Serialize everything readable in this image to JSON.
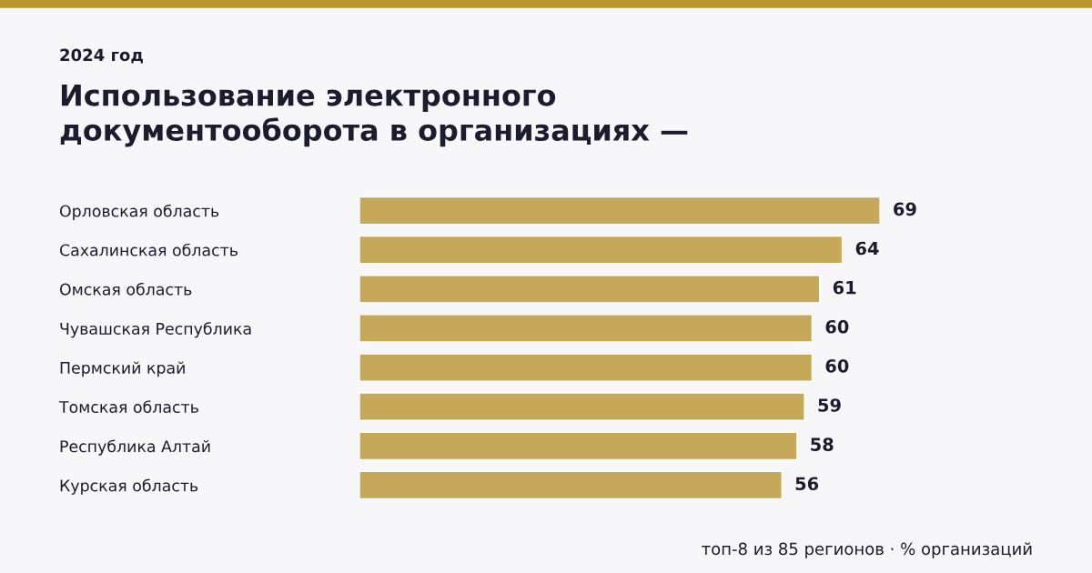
{
  "chart_data": {
    "type": "bar",
    "orientation": "horizontal",
    "title": "Использование электронного\nдокументооборота в организациях —",
    "subtitle": "2024 год",
    "categories": [
      "Орловская область",
      "Сахалинская область",
      "Омская область",
      "Чувашская Республика",
      "Пермский край",
      "Томская область",
      "Республика Алтай",
      "Курская область"
    ],
    "values": [
      69,
      64,
      61,
      60,
      60,
      59,
      58,
      56
    ],
    "color": "#c5a85a",
    "data_labels": true,
    "grid": false,
    "legend": false,
    "tick_labels": "y",
    "annotations": [
      "топ-8 из 85 регионов · % организаций"
    ]
  }
}
